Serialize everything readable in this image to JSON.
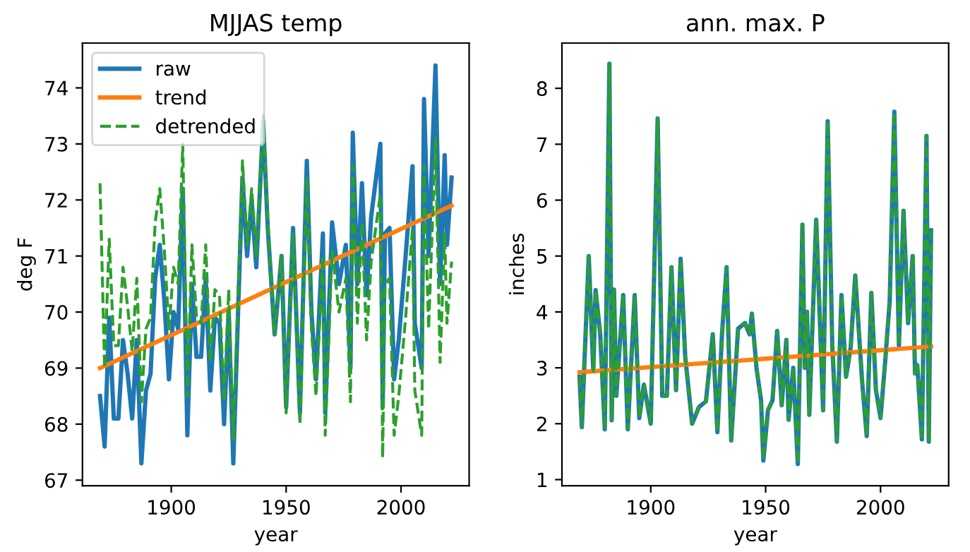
{
  "chart_data": [
    {
      "type": "line",
      "title": "MJJAS temp",
      "xlabel": "year",
      "ylabel": "deg F",
      "xlim": [
        1861.35,
        2029.65
      ],
      "xticks": [
        1900,
        1950,
        2000
      ],
      "ylim": [
        66.9,
        74.8
      ],
      "yticks": [
        67,
        68,
        69,
        70,
        71,
        72,
        73,
        74
      ],
      "grid": false,
      "legend": "top left",
      "marker": "none",
      "series": [
        {
          "name": "raw",
          "color": "#1f77b4",
          "line_style": "solid",
          "x": [
            1869,
            1871,
            1873,
            1875,
            1877,
            1879,
            1881,
            1883,
            1885,
            1887,
            1889,
            1891,
            1893,
            1895,
            1897,
            1899,
            1901,
            1903,
            1905,
            1907,
            1909,
            1911,
            1913,
            1915,
            1917,
            1919,
            1921,
            1923,
            1925,
            1927,
            1929,
            1931,
            1933,
            1935,
            1937,
            1940,
            1942,
            1945,
            1948,
            1950,
            1953,
            1956,
            1959,
            1961,
            1963,
            1966,
            1967,
            1970,
            1973,
            1976,
            1978,
            1979,
            1981,
            1983,
            1985,
            1987,
            1991,
            1992,
            1993,
            1995,
            1997,
            1999,
            2002,
            2005,
            2006,
            2009,
            2010,
            2012,
            2015,
            2017,
            2019,
            2020,
            2022
          ],
          "values": [
            68.5,
            67.6,
            69.9,
            68.1,
            68.1,
            69.5,
            68.9,
            68.1,
            69.5,
            67.3,
            68.6,
            68.9,
            70.6,
            71.2,
            70.2,
            68.8,
            70.0,
            69.7,
            72.2,
            67.8,
            70.5,
            69.2,
            69.2,
            70.6,
            68.6,
            69.9,
            69.8,
            68.0,
            70.0,
            67.3,
            69.9,
            72.4,
            71.0,
            72.0,
            70.8,
            73.4,
            71.5,
            69.6,
            71.0,
            68.3,
            71.5,
            68.2,
            72.7,
            70.0,
            68.8,
            71.4,
            68.2,
            71.6,
            70.5,
            71.2,
            69.0,
            73.2,
            70.5,
            72.3,
            70.3,
            71.7,
            73.0,
            68.3,
            71.4,
            71.5,
            68.8,
            69.5,
            71.0,
            72.6,
            69.8,
            69.0,
            73.8,
            71.0,
            74.4,
            70.5,
            72.8,
            71.2,
            72.4
          ]
        },
        {
          "name": "trend",
          "color": "#ff7f0e",
          "line_style": "solid",
          "x": [
            1869,
            2022
          ],
          "values": [
            69.0,
            71.9
          ]
        },
        {
          "name": "detrended",
          "color": "#2ca02c",
          "line_style": "dashed",
          "x": [
            1869,
            1871,
            1873,
            1875,
            1877,
            1879,
            1881,
            1883,
            1885,
            1887,
            1889,
            1891,
            1893,
            1895,
            1897,
            1899,
            1901,
            1903,
            1905,
            1907,
            1909,
            1911,
            1913,
            1915,
            1917,
            1919,
            1921,
            1923,
            1925,
            1927,
            1929,
            1931,
            1933,
            1935,
            1937,
            1940,
            1942,
            1945,
            1948,
            1950,
            1953,
            1956,
            1959,
            1961,
            1963,
            1966,
            1967,
            1970,
            1973,
            1976,
            1978,
            1979,
            1981,
            1983,
            1985,
            1987,
            1991,
            1992,
            1993,
            1995,
            1997,
            1999,
            2002,
            2005,
            2006,
            2009,
            2010,
            2012,
            2015,
            2017,
            2019,
            2020,
            2022
          ],
          "values": [
            72.3,
            69.0,
            71.3,
            69.4,
            69.4,
            70.8,
            70.1,
            69.3,
            70.6,
            68.4,
            69.7,
            69.9,
            71.6,
            72.2,
            71.1,
            69.7,
            70.8,
            70.5,
            73.0,
            68.5,
            71.2,
            69.9,
            69.8,
            71.2,
            69.1,
            70.4,
            70.3,
            68.4,
            70.4,
            67.7,
            70.2,
            72.7,
            71.2,
            72.2,
            71.0,
            73.5,
            71.6,
            69.6,
            71.0,
            68.2,
            71.4,
            68.0,
            72.4,
            69.7,
            68.5,
            71.0,
            67.8,
            71.1,
            70.0,
            70.6,
            68.4,
            72.6,
            69.8,
            71.6,
            69.5,
            70.9,
            72.1,
            67.4,
            70.5,
            70.6,
            67.8,
            68.5,
            69.9,
            71.5,
            68.6,
            67.8,
            72.6,
            69.7,
            73.1,
            69.1,
            71.4,
            69.8,
            70.9
          ]
        }
      ]
    },
    {
      "type": "line",
      "title": "ann. max. P",
      "xlabel": "year",
      "ylabel": "inches",
      "xlim": [
        1861.35,
        2029.65
      ],
      "xticks": [
        1900,
        1950,
        2000
      ],
      "ylim": [
        0.89,
        8.81
      ],
      "yticks": [
        1,
        2,
        3,
        4,
        5,
        6,
        7,
        8
      ],
      "grid": false,
      "legend": false,
      "marker": "none",
      "series": [
        {
          "color": "#1f77b4",
          "line_style": "solid",
          "x": [
            1869,
            1870,
            1873,
            1875,
            1876,
            1878,
            1880,
            1882,
            1883,
            1884,
            1885,
            1888,
            1890,
            1893,
            1895,
            1897,
            1900,
            1903,
            1905,
            1907,
            1909,
            1911,
            1913,
            1915,
            1918,
            1921,
            1924,
            1927,
            1929,
            1931,
            1933,
            1935,
            1938,
            1941,
            1943,
            1944,
            1946,
            1948,
            1949,
            1951,
            1953,
            1955,
            1957,
            1959,
            1960,
            1962,
            1964,
            1966,
            1967,
            1968,
            1969,
            1972,
            1974,
            1975,
            1977,
            1979,
            1981,
            1983,
            1985,
            1987,
            1989,
            1992,
            1994,
            1996,
            1998,
            2000,
            2002,
            2004,
            2006,
            2008,
            2010,
            2012,
            2014,
            2015,
            2016,
            2018,
            2020,
            2021,
            2022
          ],
          "values": [
            2.84,
            1.94,
            5.0,
            2.94,
            4.39,
            3.6,
            1.9,
            8.44,
            2.06,
            4.4,
            2.5,
            4.3,
            1.9,
            4.3,
            2.1,
            2.7,
            2.0,
            7.46,
            2.5,
            2.5,
            4.8,
            2.6,
            4.95,
            3.2,
            2.0,
            2.3,
            2.4,
            3.6,
            1.85,
            3.6,
            4.8,
            1.7,
            3.7,
            3.8,
            3.6,
            3.97,
            3.0,
            2.42,
            1.34,
            2.24,
            2.42,
            3.66,
            2.33,
            3.5,
            2.07,
            3.0,
            1.28,
            5.56,
            3.0,
            4.0,
            2.16,
            5.65,
            3.4,
            2.24,
            7.41,
            3.4,
            1.68,
            4.3,
            2.84,
            3.36,
            4.65,
            2.75,
            1.78,
            4.34,
            2.6,
            2.1,
            3.1,
            4.2,
            7.58,
            3.4,
            5.81,
            3.8,
            5.0,
            2.9,
            3.05,
            1.72,
            7.15,
            1.68,
            5.46
          ]
        },
        {
          "color": "#ff7f0e",
          "line_style": "solid",
          "x": [
            1869,
            2022
          ],
          "values": [
            2.92,
            3.38
          ]
        },
        {
          "color": "#2ca02c",
          "line_style": "dashed",
          "x": [
            1869,
            1870,
            1873,
            1875,
            1876,
            1878,
            1880,
            1882,
            1883,
            1884,
            1885,
            1888,
            1890,
            1893,
            1895,
            1897,
            1900,
            1903,
            1905,
            1907,
            1909,
            1911,
            1913,
            1915,
            1918,
            1921,
            1924,
            1927,
            1929,
            1931,
            1933,
            1935,
            1938,
            1941,
            1943,
            1944,
            1946,
            1948,
            1949,
            1951,
            1953,
            1955,
            1957,
            1959,
            1960,
            1962,
            1964,
            1966,
            1967,
            1968,
            1969,
            1972,
            1974,
            1975,
            1977,
            1979,
            1981,
            1983,
            1985,
            1987,
            1989,
            1992,
            1994,
            1996,
            1998,
            2000,
            2002,
            2004,
            2006,
            2008,
            2010,
            2012,
            2014,
            2015,
            2016,
            2018,
            2020,
            2021,
            2022
          ],
          "values": [
            2.84,
            1.94,
            5.0,
            2.94,
            4.39,
            3.6,
            1.9,
            8.44,
            2.06,
            4.4,
            2.5,
            4.3,
            1.9,
            4.3,
            2.1,
            2.7,
            2.0,
            7.46,
            2.5,
            2.5,
            4.8,
            2.6,
            4.95,
            3.2,
            2.0,
            2.3,
            2.4,
            3.6,
            1.85,
            3.6,
            4.8,
            1.7,
            3.7,
            3.8,
            3.6,
            3.97,
            3.0,
            2.42,
            1.34,
            2.24,
            2.42,
            3.66,
            2.33,
            3.5,
            2.07,
            3.0,
            1.28,
            5.56,
            3.0,
            4.0,
            2.16,
            5.65,
            3.4,
            2.24,
            7.41,
            3.4,
            1.68,
            4.3,
            2.84,
            3.36,
            4.65,
            2.75,
            1.78,
            4.34,
            2.6,
            2.1,
            3.1,
            4.2,
            7.58,
            3.4,
            5.81,
            3.8,
            5.0,
            2.9,
            3.05,
            1.72,
            7.15,
            1.68,
            5.46
          ]
        }
      ]
    }
  ]
}
